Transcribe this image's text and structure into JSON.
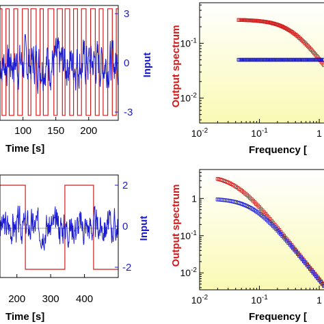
{
  "colors": {
    "input": "#1a1ad0",
    "output": "#d01a1a",
    "frame": "#000000",
    "bg_top": "#ffffff",
    "bg_bottom": "#fafab4"
  },
  "chart_data": [
    {
      "id": "ts-top",
      "type": "line",
      "title": "",
      "xlabel": "Time [s]",
      "ylabel_right": "Input",
      "x_ticks": [
        100,
        150,
        200
      ],
      "y_right_ticks": [
        -3,
        0,
        3
      ],
      "xlim": [
        65,
        245
      ],
      "ylim": [
        -3.5,
        3.5
      ],
      "series": [
        {
          "kind": "binary-output",
          "color": "#d01a1a",
          "low": -3.2,
          "high": 3.3,
          "switch_times": [
            68,
            74,
            79,
            86,
            92,
            99,
            108,
            112,
            120,
            126,
            131,
            138,
            147,
            152,
            160,
            164,
            171,
            177,
            183,
            189,
            196,
            203,
            210,
            216,
            222,
            229,
            236,
            242
          ]
        },
        {
          "kind": "noise-input",
          "color": "#1a1ad0",
          "amplitude": 1.2,
          "points": 360,
          "seed": 7
        }
      ]
    },
    {
      "id": "ts-bottom",
      "type": "line",
      "title": "",
      "xlabel": "Time [s]",
      "ylabel_right": "Input",
      "x_ticks": [
        200,
        300,
        400
      ],
      "y_right_ticks": [
        -2,
        0,
        2
      ],
      "xlim": [
        150,
        500
      ],
      "ylim": [
        -2.5,
        2.5
      ],
      "series": [
        {
          "kind": "binary-output",
          "color": "#d01a1a",
          "low": -2.1,
          "high": 2.0,
          "switch_times": [
            225,
            342,
            427
          ]
        },
        {
          "kind": "noise-input",
          "color": "#1a1ad0",
          "amplitude": 0.7,
          "points": 380,
          "seed": 3
        }
      ]
    },
    {
      "id": "spec-top",
      "type": "scatter",
      "title": "",
      "xlabel": "Frequency [",
      "ylabel": "Output spectrum",
      "x_scale": "log",
      "y_scale": "log",
      "x_ticks": [
        "10-2",
        "10-1",
        "1"
      ],
      "y_ticks": [
        "10-1",
        "10-2"
      ],
      "xlim": [
        0.01,
        1.2
      ],
      "ylim": [
        0.0035,
        0.55
      ],
      "series": [
        {
          "color": "#d01a1a",
          "level": 0.27,
          "corner": 0.35,
          "order": 1.5,
          "xmin": 0.045
        },
        {
          "color": "#1a1ad0",
          "level": 0.05,
          "corner": 1000,
          "order": 1,
          "xmin": 0.045
        }
      ]
    },
    {
      "id": "spec-bottom",
      "type": "scatter",
      "title": "",
      "xlabel": "Frequency [",
      "ylabel": "Output spectrum",
      "x_scale": "log",
      "y_scale": "log",
      "x_ticks": [
        "10-2",
        "10-1",
        "1"
      ],
      "y_ticks": [
        "1",
        "10-1",
        "10-2"
      ],
      "xlim": [
        0.01,
        1.2
      ],
      "ylim": [
        0.0035,
        6
      ],
      "series": [
        {
          "color": "#d01a1a",
          "level": 4.2,
          "corner": 0.04,
          "order": 2,
          "xmin": 0.02
        },
        {
          "color": "#1a1ad0",
          "level": 1.0,
          "corner": 0.08,
          "order": 2,
          "xmin": 0.02
        }
      ]
    }
  ]
}
